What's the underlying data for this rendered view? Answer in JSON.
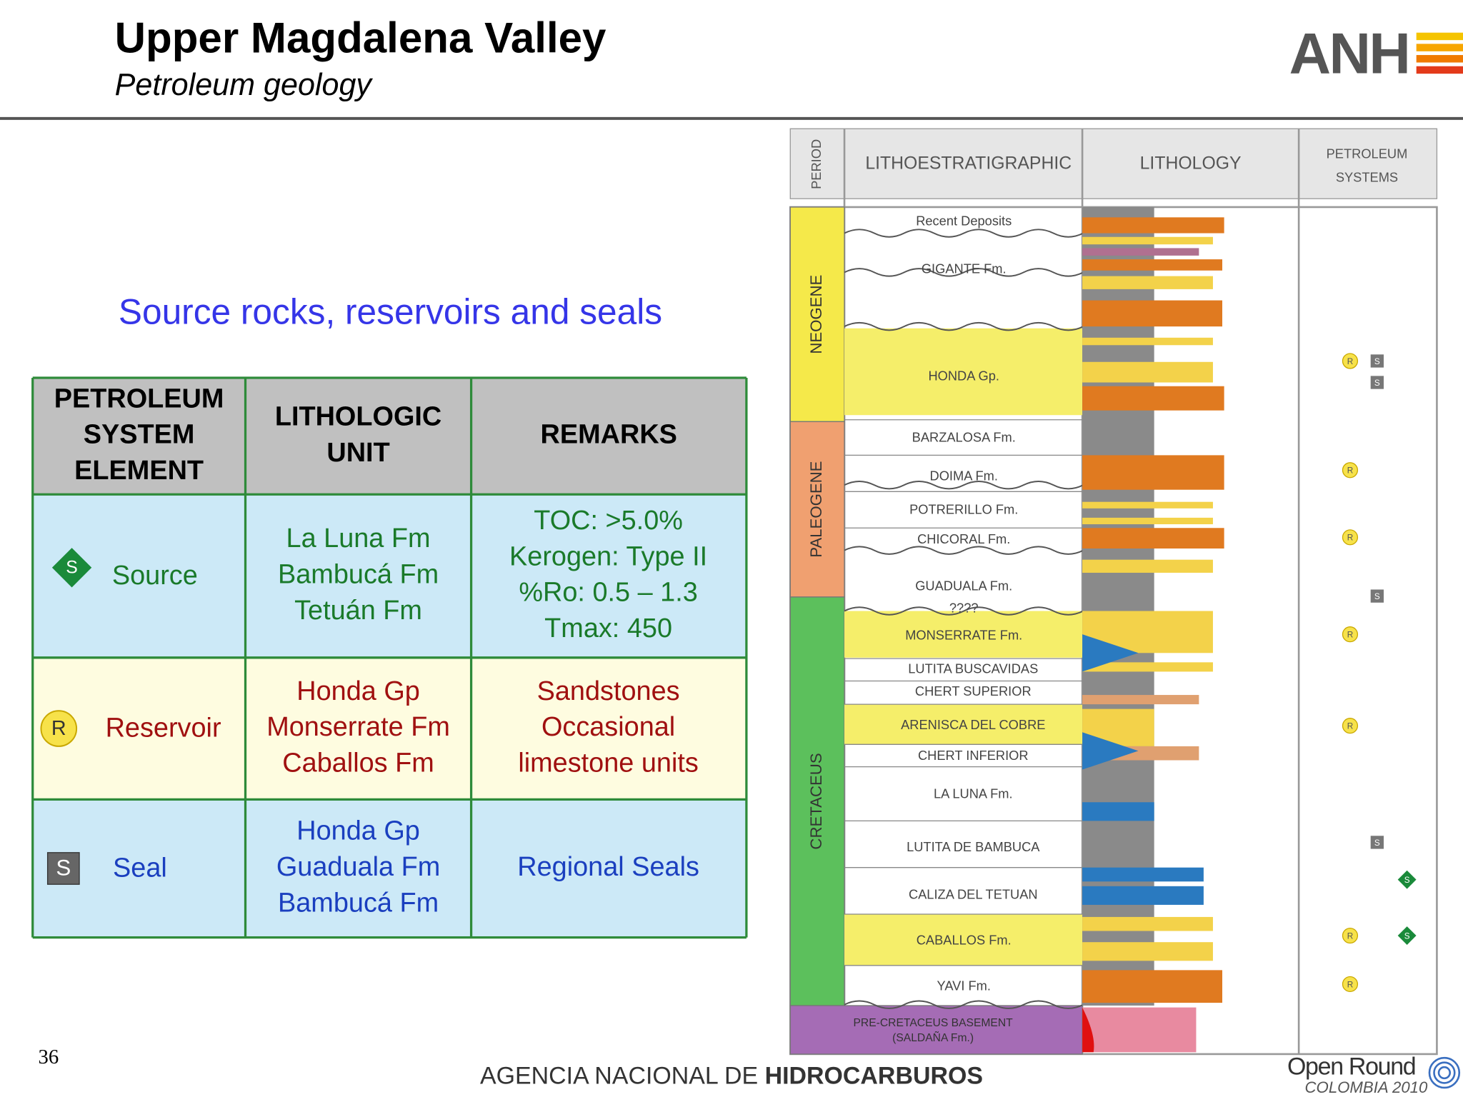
{
  "header": {
    "title": "Upper Magdalena Valley",
    "subtitle": "Petroleum geology",
    "logo": "ANH"
  },
  "heading": "Source rocks, reservoirs and seals",
  "table": {
    "headers": [
      [
        "PETROLEUM",
        "SYSTEM",
        "ELEMENT"
      ],
      [
        "LITHOLOGIC",
        "UNIT"
      ],
      [
        "REMARKS"
      ]
    ],
    "rows": [
      {
        "icon": "S",
        "element": "Source",
        "unit": [
          "La Luna Fm",
          "Bambucá Fm",
          "Tetuán Fm"
        ],
        "remarks": [
          "TOC: >5.0%",
          "Kerogen: Type II",
          "%Ro: 0.5 – 1.3",
          "Tmax: 450"
        ]
      },
      {
        "icon": "R",
        "element": "Reservoir",
        "unit": [
          "Honda Gp",
          "Monserrate Fm",
          "Caballos Fm"
        ],
        "remarks": [
          "Sandstones",
          "Occasional",
          "limestone units"
        ]
      },
      {
        "icon": "S",
        "element": "Seal",
        "unit": [
          "Honda Gp",
          "Guaduala Fm",
          "Bambucá Fm"
        ],
        "remarks": [
          "Regional Seals"
        ]
      }
    ]
  },
  "column": {
    "headers": [
      "PERIOD",
      "LITHOESTRATIGRAPHIC",
      "LITHOLOGY",
      [
        "PETROLEUM",
        "SYSTEMS"
      ]
    ],
    "periods": [
      "NEOGENE",
      "PALEOGENE",
      "CRETACEUS"
    ],
    "formations": [
      "Recent Deposits",
      "GIGANTE Fm.",
      "HONDA Gp.",
      "BARZALOSA Fm.",
      "DOIMA Fm.",
      "POTRERILLO Fm.",
      "CHICORAL Fm.",
      "GUADUALA Fm.",
      "????",
      "MONSERRATE Fm.",
      "LUTITA BUSCAVIDAS",
      "CHERT SUPERIOR",
      "ARENISCA DEL COBRE",
      "CHERT INFERIOR",
      "LA LUNA Fm.",
      "LUTITA DE BAMBUCA",
      "CALIZA DEL TETUAN",
      "CABALLOS Fm.",
      "YAVI Fm."
    ],
    "basement": [
      "PRE-CRETACEUS BASEMENT",
      "(SALDAÑA Fm.)"
    ],
    "markers": [
      "R",
      "S",
      "S",
      "R",
      "R",
      "S",
      "R",
      "R",
      "S",
      "S",
      "R",
      "S",
      "R"
    ]
  },
  "footer": {
    "page": "36",
    "agency": "AGENCIA NACIONAL DE",
    "agency_bold": "HIDROCARBUROS",
    "brand": "Open Round",
    "brand_sub": "COLOMBIA 2010"
  }
}
